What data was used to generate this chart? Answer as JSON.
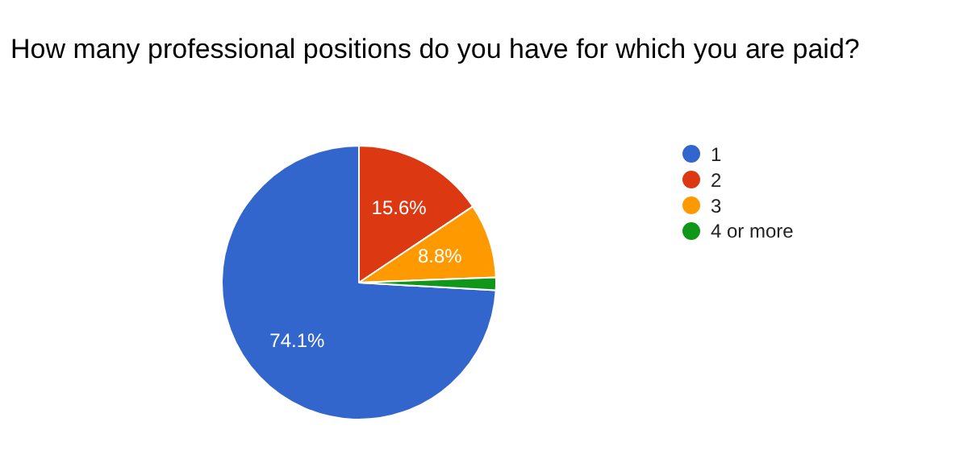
{
  "chart_data": {
    "type": "pie",
    "title": "How many professional positions do you have for which you are paid?",
    "categories": [
      "1",
      "2",
      "3",
      "4 or more"
    ],
    "values": [
      74.1,
      15.6,
      8.8,
      1.5
    ],
    "colors": [
      "#3366cc",
      "#dc3912",
      "#ff9900",
      "#109618"
    ],
    "value_labels": [
      "74.1%",
      "15.6%",
      "8.8%",
      null
    ],
    "legend": "right"
  }
}
